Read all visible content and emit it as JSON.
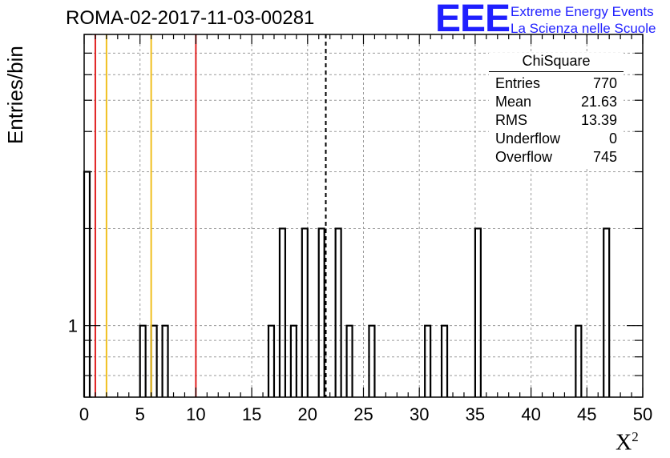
{
  "title": "ROMA-02-2017-11-03-00281",
  "logo": {
    "mark": "EEE",
    "line1": "Extreme Energy Events",
    "line2": "La Scienza nelle Scuole",
    "color": "#1f1fff"
  },
  "stats": {
    "name": "ChiSquare",
    "rows": [
      {
        "label": "Entries",
        "value": "770"
      },
      {
        "label": "Mean",
        "value": "21.63"
      },
      {
        "label": "RMS",
        "value": "13.39"
      },
      {
        "label": "Underflow",
        "value": "0"
      },
      {
        "label": "Overflow",
        "value": "745"
      }
    ]
  },
  "chart_data": {
    "type": "bar",
    "style": "histogram-step",
    "ylabel": "Entries/bin",
    "xlabel": "X",
    "xlabel_superscript": "2",
    "xlim": [
      0,
      50
    ],
    "ylim": [
      0.6,
      8
    ],
    "yscale": "log",
    "bin_width": 0.5,
    "x_ticks": [
      0,
      5,
      10,
      15,
      20,
      25,
      30,
      35,
      40,
      45,
      50
    ],
    "y_tick_labels": [
      {
        "value": 1,
        "label": "1"
      }
    ],
    "grid": true,
    "bins": [
      {
        "x": 0.0,
        "value": 3
      },
      {
        "x": 5.0,
        "value": 1
      },
      {
        "x": 6.0,
        "value": 1
      },
      {
        "x": 7.0,
        "value": 1
      },
      {
        "x": 16.5,
        "value": 1
      },
      {
        "x": 17.5,
        "value": 2
      },
      {
        "x": 18.5,
        "value": 1
      },
      {
        "x": 19.5,
        "value": 2
      },
      {
        "x": 21.0,
        "value": 2
      },
      {
        "x": 22.5,
        "value": 2
      },
      {
        "x": 23.5,
        "value": 1
      },
      {
        "x": 25.5,
        "value": 1
      },
      {
        "x": 30.5,
        "value": 1
      },
      {
        "x": 32.0,
        "value": 1
      },
      {
        "x": 35.0,
        "value": 2
      },
      {
        "x": 44.0,
        "value": 1
      },
      {
        "x": 46.5,
        "value": 2
      }
    ],
    "vertical_lines": [
      {
        "x": 1.0,
        "color": "#e02020",
        "style": "solid"
      },
      {
        "x": 2.0,
        "color": "#f0c020",
        "style": "solid"
      },
      {
        "x": 6.0,
        "color": "#f0c020",
        "style": "solid"
      },
      {
        "x": 10.0,
        "color": "#e02020",
        "style": "solid"
      },
      {
        "x": 21.63,
        "color": "#000000",
        "style": "dashed"
      }
    ]
  }
}
